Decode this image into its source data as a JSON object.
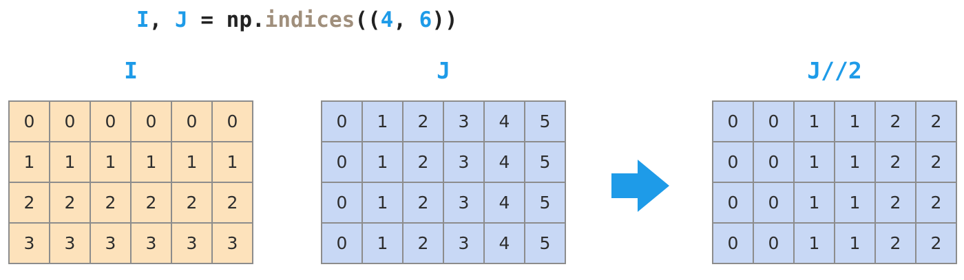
{
  "code": {
    "var_i": "I",
    "comma": ", ",
    "var_j": "J",
    "equals": " = np.",
    "fn": "indices",
    "open": "((",
    "n1": "4",
    "sep": ", ",
    "n2": "6",
    "close": "))"
  },
  "panels": [
    {
      "label": "I",
      "color": "#fde2bb",
      "rows": [
        [
          "0",
          "0",
          "0",
          "0",
          "0",
          "0"
        ],
        [
          "1",
          "1",
          "1",
          "1",
          "1",
          "1"
        ],
        [
          "2",
          "2",
          "2",
          "2",
          "2",
          "2"
        ],
        [
          "3",
          "3",
          "3",
          "3",
          "3",
          "3"
        ]
      ]
    },
    {
      "label": "J",
      "color": "#c8d8f5",
      "rows": [
        [
          "0",
          "1",
          "2",
          "3",
          "4",
          "5"
        ],
        [
          "0",
          "1",
          "2",
          "3",
          "4",
          "5"
        ],
        [
          "0",
          "1",
          "2",
          "3",
          "4",
          "5"
        ],
        [
          "0",
          "1",
          "2",
          "3",
          "4",
          "5"
        ]
      ]
    },
    {
      "label": "J//2",
      "color": "#c8d8f5",
      "rows": [
        [
          "0",
          "0",
          "1",
          "1",
          "2",
          "2"
        ],
        [
          "0",
          "0",
          "1",
          "1",
          "2",
          "2"
        ],
        [
          "0",
          "0",
          "1",
          "1",
          "2",
          "2"
        ],
        [
          "0",
          "0",
          "1",
          "1",
          "2",
          "2"
        ]
      ]
    }
  ],
  "arrow": {
    "icon": "right-arrow-icon",
    "color": "#1e9be8"
  }
}
